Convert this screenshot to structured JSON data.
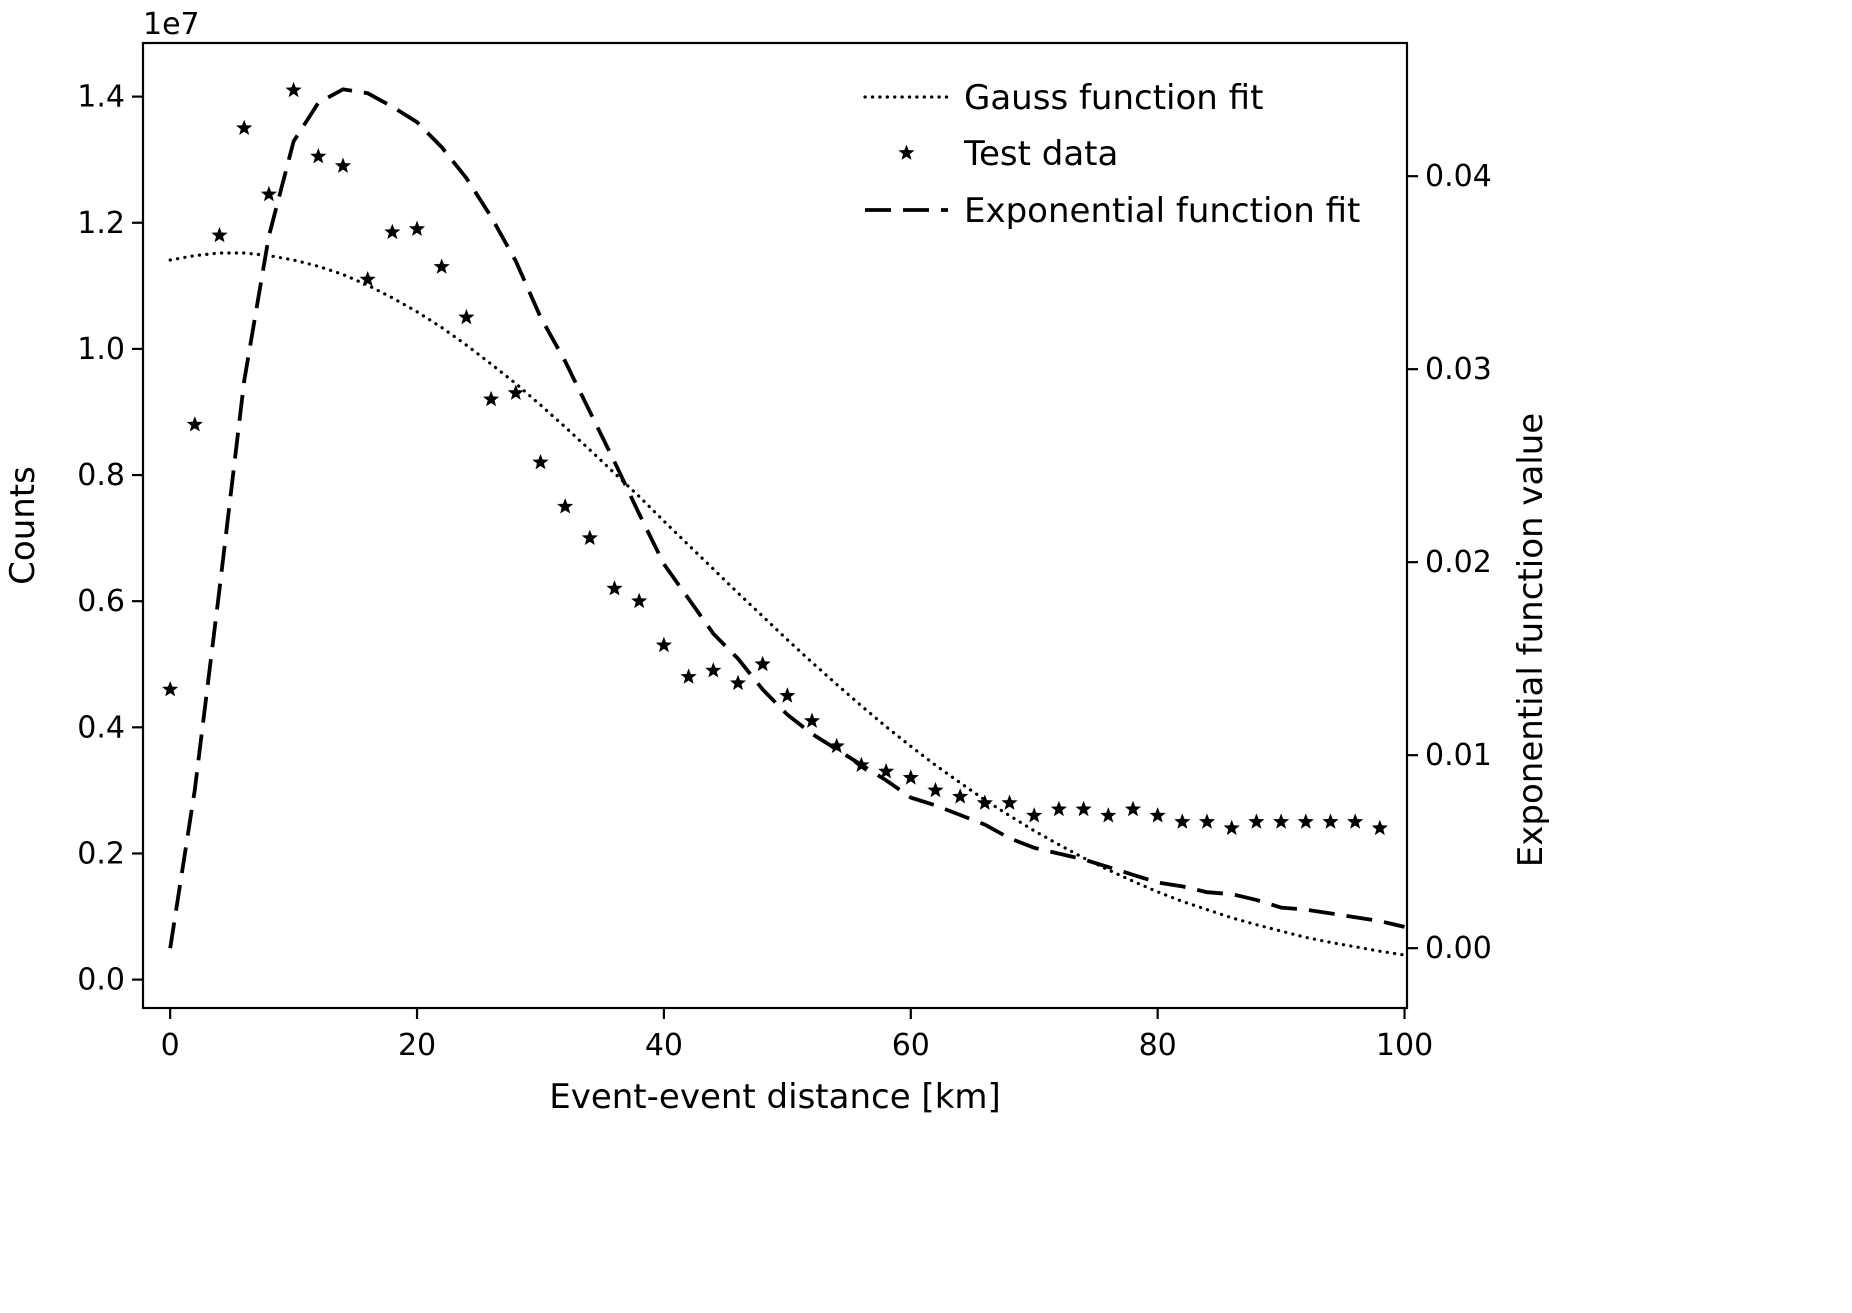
{
  "figure": {
    "background": "#ffffff",
    "line_color": "#000000"
  },
  "chart_data": {
    "type": "line",
    "xlabel": "Event-event distance [km]",
    "ylabel_left": "Counts",
    "ylabel_right": "Exponential function value",
    "left_offset_label": "1e7",
    "xlim": [
      -2.2,
      100.2
    ],
    "ylim_left_1e7": [
      -0.045,
      1.485
    ],
    "ylim_right": [
      -0.0031,
      0.0469
    ],
    "x_ticks": [
      0,
      20,
      40,
      60,
      80,
      100
    ],
    "y_ticks_left_1e7": [
      0.0,
      0.2,
      0.4,
      0.6,
      0.8,
      1.0,
      1.2,
      1.4
    ],
    "y_ticks_right": [
      0.0,
      0.01,
      0.02,
      0.03,
      0.04
    ],
    "grid": false,
    "legend_position": "upper right",
    "legend": [
      {
        "label": "Gauss function fit",
        "style": "dotted"
      },
      {
        "label": "Test data",
        "style": "star"
      },
      {
        "label": "Exponential function fit",
        "style": "dashed"
      }
    ],
    "series": [
      {
        "name": "Gauss function fit",
        "axis": "left",
        "style": "dotted",
        "x": [
          0,
          2,
          4,
          6,
          8,
          10,
          12,
          14,
          16,
          18,
          20,
          22,
          24,
          26,
          28,
          30,
          32,
          34,
          36,
          38,
          40,
          42,
          44,
          46,
          48,
          50,
          52,
          54,
          56,
          58,
          60,
          62,
          64,
          66,
          68,
          70,
          72,
          74,
          76,
          78,
          80,
          82,
          84,
          86,
          88,
          90,
          92,
          94,
          96,
          98,
          100
        ],
        "y_1e7": [
          1.141,
          1.148,
          1.152,
          1.152,
          1.148,
          1.141,
          1.131,
          1.118,
          1.101,
          1.081,
          1.059,
          1.034,
          1.006,
          0.976,
          0.945,
          0.911,
          0.876,
          0.84,
          0.803,
          0.766,
          0.727,
          0.689,
          0.651,
          0.613,
          0.576,
          0.539,
          0.503,
          0.468,
          0.434,
          0.401,
          0.37,
          0.34,
          0.312,
          0.285,
          0.26,
          0.236,
          0.214,
          0.193,
          0.174,
          0.156,
          0.139,
          0.124,
          0.111,
          0.098,
          0.087,
          0.077,
          0.067,
          0.059,
          0.052,
          0.045,
          0.039
        ]
      },
      {
        "name": "Test data",
        "axis": "left",
        "style": "star",
        "x": [
          0,
          2,
          4,
          6,
          8,
          10,
          12,
          14,
          16,
          18,
          20,
          22,
          24,
          26,
          28,
          30,
          32,
          34,
          36,
          38,
          40,
          42,
          44,
          46,
          48,
          50,
          52,
          54,
          56,
          58,
          60,
          62,
          64,
          66,
          68,
          70,
          72,
          74,
          76,
          78,
          80,
          82,
          84,
          86,
          88,
          90,
          92,
          94,
          96,
          98
        ],
        "y_1e7": [
          0.46,
          0.88,
          1.18,
          1.35,
          1.245,
          1.41,
          1.305,
          1.29,
          1.11,
          1.185,
          1.19,
          1.13,
          1.05,
          0.92,
          0.93,
          0.82,
          0.75,
          0.7,
          0.62,
          0.6,
          0.53,
          0.48,
          0.49,
          0.47,
          0.5,
          0.45,
          0.41,
          0.37,
          0.34,
          0.33,
          0.32,
          0.3,
          0.29,
          0.28,
          0.28,
          0.26,
          0.27,
          0.27,
          0.26,
          0.27,
          0.26,
          0.25,
          0.25,
          0.24,
          0.25,
          0.25,
          0.25,
          0.25,
          0.25,
          0.24
        ]
      },
      {
        "name": "Exponential function fit",
        "axis": "right",
        "style": "dashed",
        "x": [
          0,
          2,
          4,
          6,
          8,
          10,
          12,
          14,
          16,
          18,
          20,
          22,
          24,
          26,
          28,
          30,
          32,
          34,
          36,
          38,
          40,
          42,
          44,
          46,
          48,
          50,
          52,
          54,
          56,
          58,
          60,
          62,
          64,
          66,
          68,
          70,
          72,
          74,
          76,
          78,
          80,
          82,
          84,
          86,
          88,
          90,
          92,
          94,
          96,
          98,
          100
        ],
        "y": [
          0.0,
          0.0082,
          0.0186,
          0.0294,
          0.0369,
          0.0418,
          0.0438,
          0.0445,
          0.0443,
          0.0436,
          0.0428,
          0.0415,
          0.0399,
          0.0379,
          0.0356,
          0.0327,
          0.0304,
          0.0278,
          0.0252,
          0.0225,
          0.0199,
          0.0181,
          0.0163,
          0.015,
          0.0134,
          0.0121,
          0.0111,
          0.0103,
          0.0095,
          0.0087,
          0.0078,
          0.0074,
          0.0069,
          0.0064,
          0.0057,
          0.0052,
          0.0049,
          0.0046,
          0.0042,
          0.0038,
          0.0034,
          0.0032,
          0.0029,
          0.0028,
          0.0025,
          0.0021,
          0.002,
          0.0018,
          0.0016,
          0.0014,
          0.0011
        ]
      }
    ]
  }
}
